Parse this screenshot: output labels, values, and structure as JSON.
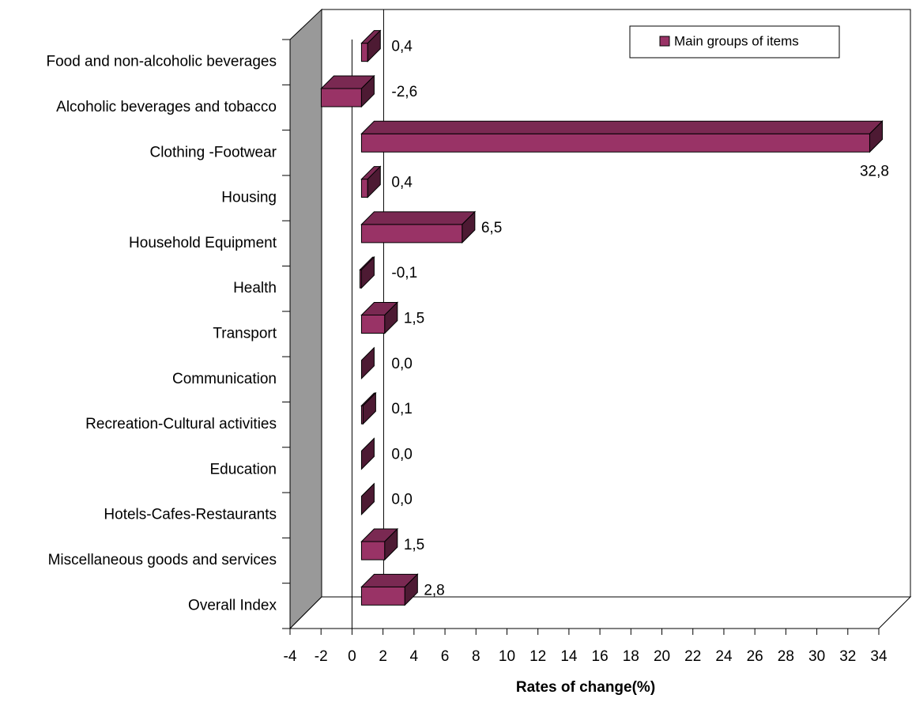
{
  "chart_data": {
    "type": "bar",
    "orientation": "horizontal",
    "categories": [
      "Food and non-alcoholic beverages",
      "Alcoholic beverages and tobacco",
      "Clothing -Footwear",
      "Housing",
      "Household Equipment",
      "Health",
      "Transport",
      "Communication",
      "Recreation-Cultural activities",
      "Education",
      "Hotels-Cafes-Restaurants",
      "Miscellaneous goods and services",
      "Overall Index"
    ],
    "series": [
      {
        "name": "Main groups of items",
        "color": "#993366",
        "values": [
          0.4,
          -2.6,
          32.8,
          0.4,
          6.5,
          -0.1,
          1.5,
          0.0,
          0.1,
          0.0,
          0.0,
          1.5,
          2.8
        ],
        "value_labels": [
          "0,4",
          "-2,6",
          "32,8",
          "0,4",
          "6,5",
          "-0,1",
          "1,5",
          "0,0",
          "0,1",
          "0,0",
          "0,0",
          "1,5",
          "2,8"
        ]
      }
    ],
    "x_label": "Rates of change(%)",
    "xlim": [
      -4,
      34
    ],
    "xticks": [
      -4,
      -2,
      0,
      2,
      4,
      6,
      8,
      10,
      12,
      14,
      16,
      18,
      20,
      22,
      24,
      26,
      28,
      30,
      32,
      34
    ],
    "legend": "top-right",
    "grid": false
  }
}
